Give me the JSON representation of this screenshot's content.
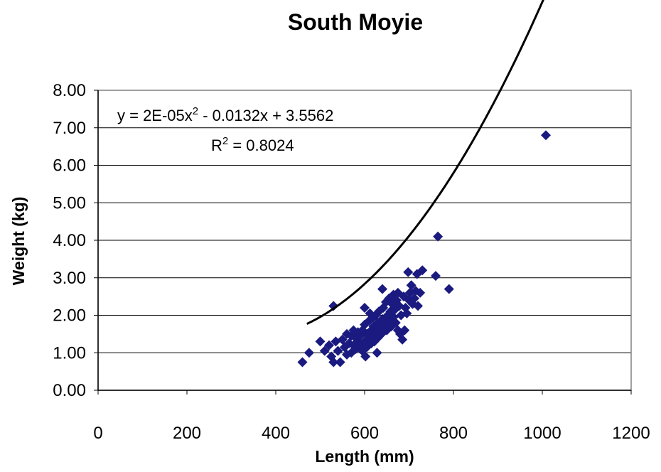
{
  "chart_data": {
    "type": "scatter",
    "title": "South Moyie",
    "xlabel": "Length (mm)",
    "ylabel": "Weight (kg)",
    "xlim": [
      0,
      1200
    ],
    "ylim": [
      0,
      8
    ],
    "x_ticks": [
      "0",
      "200",
      "400",
      "600",
      "800",
      "1000",
      "1200"
    ],
    "y_ticks": [
      "0.00",
      "1.00",
      "2.00",
      "3.00",
      "4.00",
      "5.00",
      "6.00",
      "7.00",
      "8.00"
    ],
    "grid": "horizontal",
    "marker_color": "#1a1a80",
    "marker": "diamond",
    "trendline": {
      "type": "polynomial",
      "coefficients": [
        2e-05,
        -0.0132,
        3.5562
      ],
      "x_range": [
        470,
        1008
      ],
      "color": "#000000",
      "equation_text": "y = 2E-05x",
      "equation_exp": "2",
      "equation_rest": " - 0.0132x + 3.5562",
      "r2_prefix": "R",
      "r2_exp": "2",
      "r2_rest": " = 0.8024"
    },
    "points": [
      [
        460,
        0.75
      ],
      [
        475,
        1.0
      ],
      [
        500,
        1.3
      ],
      [
        510,
        1.05
      ],
      [
        520,
        1.2
      ],
      [
        525,
        0.9
      ],
      [
        530,
        2.25
      ],
      [
        530,
        0.75
      ],
      [
        535,
        1.3
      ],
      [
        540,
        1.05
      ],
      [
        545,
        0.75
      ],
      [
        550,
        1.35
      ],
      [
        555,
        1.15
      ],
      [
        560,
        1.5
      ],
      [
        560,
        0.95
      ],
      [
        565,
        1.25
      ],
      [
        570,
        1.45
      ],
      [
        570,
        1.0
      ],
      [
        575,
        1.6
      ],
      [
        575,
        1.2
      ],
      [
        580,
        1.1
      ],
      [
        580,
        1.4
      ],
      [
        585,
        1.55
      ],
      [
        585,
        1.3
      ],
      [
        590,
        1.2
      ],
      [
        590,
        1.45
      ],
      [
        595,
        1.05
      ],
      [
        595,
        1.6
      ],
      [
        600,
        1.3
      ],
      [
        600,
        1.75
      ],
      [
        600,
        2.2
      ],
      [
        602,
        0.9
      ],
      [
        605,
        1.5
      ],
      [
        605,
        1.15
      ],
      [
        610,
        1.85
      ],
      [
        610,
        1.35
      ],
      [
        612,
        2.05
      ],
      [
        615,
        1.6
      ],
      [
        615,
        1.25
      ],
      [
        618,
        1.45
      ],
      [
        620,
        1.7
      ],
      [
        620,
        1.95
      ],
      [
        622,
        1.3
      ],
      [
        625,
        2.0
      ],
      [
        625,
        1.55
      ],
      [
        628,
        1.0
      ],
      [
        630,
        1.8
      ],
      [
        630,
        1.4
      ],
      [
        632,
        2.1
      ],
      [
        635,
        1.65
      ],
      [
        638,
        1.5
      ],
      [
        640,
        2.7
      ],
      [
        640,
        1.9
      ],
      [
        642,
        2.2
      ],
      [
        645,
        1.75
      ],
      [
        648,
        2.35
      ],
      [
        650,
        1.6
      ],
      [
        652,
        2.0
      ],
      [
        655,
        2.45
      ],
      [
        655,
        1.85
      ],
      [
        658,
        2.1
      ],
      [
        660,
        1.7
      ],
      [
        662,
        2.3
      ],
      [
        665,
        2.55
      ],
      [
        665,
        1.95
      ],
      [
        668,
        2.15
      ],
      [
        670,
        1.8
      ],
      [
        672,
        2.4
      ],
      [
        675,
        2.6
      ],
      [
        675,
        1.6
      ],
      [
        678,
        2.25
      ],
      [
        680,
        1.5
      ],
      [
        682,
        2.0
      ],
      [
        685,
        1.35
      ],
      [
        688,
        2.5
      ],
      [
        690,
        1.6
      ],
      [
        692,
        2.2
      ],
      [
        695,
        2.05
      ],
      [
        698,
        3.15
      ],
      [
        700,
        2.4
      ],
      [
        702,
        2.6
      ],
      [
        705,
        2.8
      ],
      [
        708,
        2.3
      ],
      [
        712,
        2.45
      ],
      [
        715,
        2.65
      ],
      [
        718,
        3.1
      ],
      [
        720,
        2.25
      ],
      [
        725,
        2.6
      ],
      [
        730,
        3.2
      ],
      [
        760,
        3.05
      ],
      [
        765,
        4.1
      ],
      [
        790,
        2.7
      ],
      [
        1008,
        6.8
      ]
    ]
  }
}
